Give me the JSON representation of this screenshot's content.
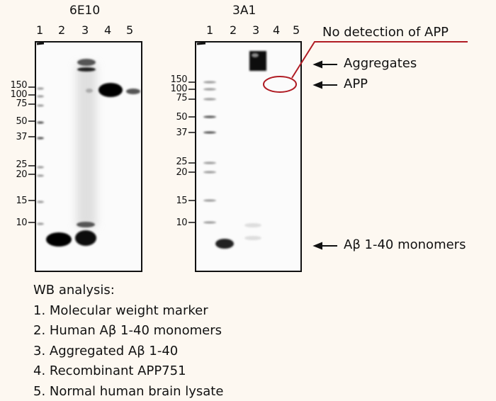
{
  "blots": [
    {
      "title": "6E10",
      "lanes": [
        "1",
        "2",
        "3",
        "4",
        "5"
      ],
      "markers": [
        "150",
        "100",
        "75",
        "50",
        "37",
        "25",
        "20",
        "15",
        "10"
      ]
    },
    {
      "title": "3A1",
      "lanes": [
        "1",
        "2",
        "3",
        "4",
        "5"
      ],
      "markers": [
        "150",
        "100",
        "75",
        "50",
        "37",
        "25",
        "20",
        "15",
        "10"
      ]
    }
  ],
  "annotations": {
    "no_detection": "No detection of APP",
    "aggregates": "Aggregates",
    "app": "APP",
    "monomers": "Aβ 1-40 monomers"
  },
  "legend": {
    "heading": "WB analysis:",
    "items": [
      "1. Molecular weight marker",
      "2. Human Aβ 1-40 monomers",
      "3. Aggregated Aβ 1-40",
      "4. Recombinant APP751",
      "5. Normal human brain lysate"
    ]
  },
  "colors": {
    "background": "#fdf8f1",
    "highlight": "#b01c24"
  }
}
